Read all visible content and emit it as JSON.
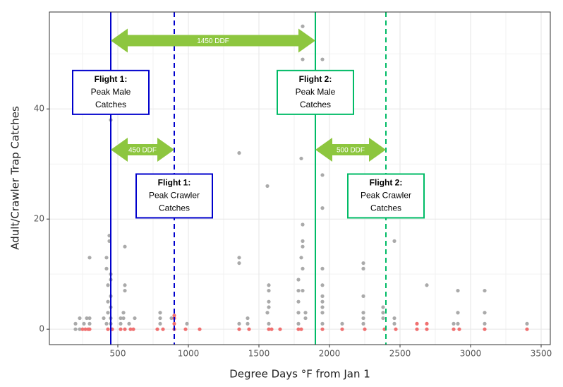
{
  "chart_data": {
    "type": "scatter",
    "x_label": "Degree Days °F from Jan 1",
    "y_label": "Adult/Crawler Trap Catches",
    "xlim": [
      15,
      3565
    ],
    "ylim": [
      -2.8,
      57.6
    ],
    "xticks": [
      500,
      1000,
      1500,
      2000,
      2500,
      3000,
      3500
    ],
    "yticks": [
      0,
      20,
      40
    ],
    "xminorticks": [
      250,
      750,
      1250,
      1750,
      2250,
      2750,
      3250
    ],
    "yminorticks": [
      10,
      30,
      50
    ],
    "grid": true,
    "series": [
      {
        "color": "#aaaaaa",
        "x": [
          200,
          200,
          230,
          230,
          260,
          280,
          300,
          300,
          300,
          400,
          420,
          420,
          420,
          430,
          430,
          430,
          440,
          440,
          450,
          450,
          450,
          450,
          450,
          450,
          450,
          520,
          520,
          540,
          540,
          550,
          550,
          550,
          580,
          620,
          800,
          800,
          800,
          880,
          990,
          1360,
          1360,
          1360,
          1360,
          1420,
          1420,
          1560,
          1560,
          1570,
          1570,
          1570,
          1570,
          1570,
          1780,
          1780,
          1780,
          1780,
          1780,
          1800,
          1800,
          1810,
          1810,
          1810,
          1810,
          1810,
          1810,
          1810,
          1830,
          1830,
          1950,
          1950,
          1950,
          1950,
          1950,
          1950,
          1950,
          1950,
          1950,
          1950,
          2090,
          2240,
          2240,
          2240,
          2240,
          2240,
          2240,
          2380,
          2380,
          2380,
          2460,
          2460,
          2460,
          2690,
          2880,
          2910,
          2910,
          2910,
          3100,
          3100,
          3100,
          3400
        ],
        "values": [
          0,
          1,
          2,
          0,
          1,
          2,
          13,
          1,
          2,
          2,
          13,
          11,
          1,
          8,
          5,
          3,
          17,
          16,
          38,
          10,
          9,
          6,
          4,
          2,
          1,
          2,
          1,
          3,
          2,
          15,
          8,
          7,
          1,
          2,
          3,
          2,
          1,
          2,
          1,
          32,
          13,
          12,
          1,
          2,
          1,
          26,
          3,
          8,
          7,
          5,
          4,
          1,
          9,
          7,
          5,
          3,
          1,
          31,
          13,
          55,
          49,
          19,
          16,
          15,
          11,
          7,
          3,
          2,
          49,
          28,
          22,
          11,
          8,
          6,
          5,
          4,
          3,
          1,
          1,
          12,
          11,
          6,
          3,
          2,
          1,
          4,
          3,
          2,
          16,
          2,
          1,
          8,
          1,
          7,
          3,
          1,
          7,
          3,
          1,
          1
        ]
      },
      {
        "color": "#f07070",
        "x": [
          250,
          270,
          290,
          300,
          430,
          460,
          520,
          550,
          590,
          610,
          780,
          820,
          900,
          900,
          900,
          900,
          980,
          1080,
          1360,
          1430,
          1570,
          1590,
          1650,
          1780,
          1800,
          1950,
          2090,
          2250,
          2390,
          2470,
          2620,
          2620,
          2690,
          2690,
          2880,
          2920,
          3100,
          3400
        ],
        "values": [
          0,
          0,
          0,
          0,
          0,
          0,
          0,
          0,
          0,
          0,
          0,
          0,
          2.5,
          2,
          1,
          0,
          0,
          0,
          0,
          0,
          0,
          0,
          0,
          0,
          0,
          0,
          0,
          0,
          0,
          0,
          0,
          1,
          1,
          0,
          0,
          0,
          0,
          0
        ]
      }
    ],
    "vlines": [
      {
        "x": 450,
        "color": "#0000cc",
        "dashed": false
      },
      {
        "x": 900,
        "color": "#0000cc",
        "dashed": true
      },
      {
        "x": 1900,
        "color": "#00bb66",
        "dashed": false
      },
      {
        "x": 2400,
        "color": "#00bb66",
        "dashed": true
      }
    ],
    "arrows": [
      {
        "label": "1450 DDF",
        "x": [
          450,
          1900
        ],
        "y": 52.4
      },
      {
        "label": "450 DDF",
        "x": [
          450,
          900
        ],
        "y": 32.6
      },
      {
        "label": "500 DDF",
        "x": [
          1900,
          2400
        ],
        "y": 32.6
      }
    ],
    "arrow_color": "#8dc63f",
    "boxes": [
      {
        "x": 450,
        "y": 43,
        "color": "#0000cc",
        "lines": [
          "Flight 1:",
          "Peak Male",
          "Catches"
        ]
      },
      {
        "x": 900,
        "y": 24.2,
        "color": "#0000cc",
        "lines": [
          "Flight 1:",
          "Peak Crawler",
          "Catches"
        ]
      },
      {
        "x": 1900,
        "y": 43,
        "color": "#00bb66",
        "lines": [
          "Flight 2:",
          "Peak Male",
          "Catches"
        ]
      },
      {
        "x": 2400,
        "y": 24.2,
        "color": "#00bb66",
        "lines": [
          "Flight 2:",
          "Peak Crawler",
          "Catches"
        ]
      }
    ]
  }
}
